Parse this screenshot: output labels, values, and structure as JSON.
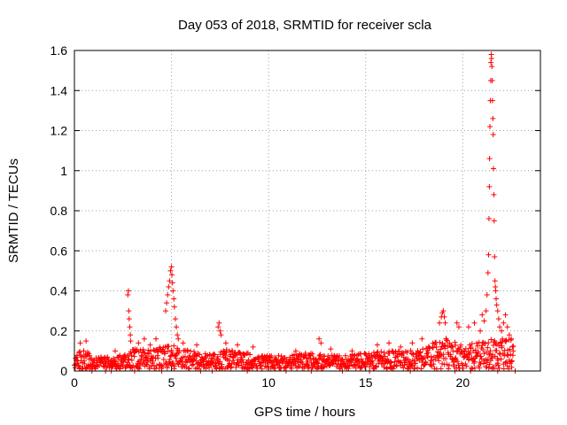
{
  "chart_data": {
    "type": "scatter",
    "title": "Day 053 of 2018, SRMTID for receiver scla",
    "xlabel": "GPS time / hours",
    "ylabel": "SRMTID / TECUs",
    "xlim": [
      0,
      24
    ],
    "ylim": [
      0,
      1.6
    ],
    "x_ticks": [
      0,
      5,
      10,
      15,
      20
    ],
    "x_tick_labels": [
      "0",
      "5",
      "10",
      "15",
      "20"
    ],
    "y_ticks": [
      0,
      0.2,
      0.4,
      0.6,
      0.8,
      1,
      1.2,
      1.4,
      1.6
    ],
    "y_tick_labels": [
      "0",
      "0.2",
      "0.4",
      "0.6",
      "0.8",
      "1",
      "1.2",
      "1.4",
      "1.6"
    ],
    "grid": true,
    "marker": "+",
    "series_color": "#ff0000",
    "baseline_envelope": [
      [
        0.0,
        0.08
      ],
      [
        0.5,
        0.1
      ],
      [
        1.0,
        0.06
      ],
      [
        2.0,
        0.06
      ],
      [
        3.0,
        0.1
      ],
      [
        4.0,
        0.1
      ],
      [
        5.0,
        0.12
      ],
      [
        6.0,
        0.09
      ],
      [
        7.0,
        0.08
      ],
      [
        8.0,
        0.1
      ],
      [
        9.0,
        0.08
      ],
      [
        10.0,
        0.07
      ],
      [
        11.0,
        0.07
      ],
      [
        12.0,
        0.08
      ],
      [
        13.0,
        0.07
      ],
      [
        14.0,
        0.07
      ],
      [
        15.0,
        0.08
      ],
      [
        16.0,
        0.09
      ],
      [
        17.0,
        0.09
      ],
      [
        18.0,
        0.11
      ],
      [
        19.0,
        0.16
      ],
      [
        20.0,
        0.12
      ],
      [
        21.0,
        0.14
      ],
      [
        22.0,
        0.16
      ],
      [
        22.6,
        0.15
      ]
    ],
    "points": [
      [
        2.75,
        0.38
      ],
      [
        2.78,
        0.4
      ],
      [
        2.8,
        0.3
      ],
      [
        2.82,
        0.26
      ],
      [
        2.85,
        0.22
      ],
      [
        2.88,
        0.18
      ],
      [
        2.9,
        0.15
      ],
      [
        4.7,
        0.3
      ],
      [
        4.75,
        0.34
      ],
      [
        4.8,
        0.38
      ],
      [
        4.85,
        0.42
      ],
      [
        4.9,
        0.45
      ],
      [
        4.95,
        0.5
      ],
      [
        5.0,
        0.52
      ],
      [
        5.02,
        0.48
      ],
      [
        5.05,
        0.44
      ],
      [
        5.08,
        0.4
      ],
      [
        5.12,
        0.36
      ],
      [
        5.15,
        0.32
      ],
      [
        5.2,
        0.26
      ],
      [
        5.25,
        0.22
      ],
      [
        5.3,
        0.18
      ],
      [
        5.35,
        0.16
      ],
      [
        7.4,
        0.22
      ],
      [
        7.45,
        0.24
      ],
      [
        7.5,
        0.2
      ],
      [
        7.55,
        0.18
      ],
      [
        12.6,
        0.16
      ],
      [
        12.7,
        0.14
      ],
      [
        18.8,
        0.24
      ],
      [
        18.9,
        0.27
      ],
      [
        18.95,
        0.29
      ],
      [
        19.0,
        0.3
      ],
      [
        19.05,
        0.27
      ],
      [
        19.1,
        0.24
      ],
      [
        19.7,
        0.24
      ],
      [
        19.8,
        0.22
      ],
      [
        20.3,
        0.22
      ],
      [
        20.6,
        0.24
      ],
      [
        20.9,
        0.2
      ],
      [
        21.0,
        0.28
      ],
      [
        21.1,
        0.25
      ],
      [
        21.2,
        0.3
      ],
      [
        21.25,
        0.38
      ],
      [
        21.3,
        0.49
      ],
      [
        21.33,
        0.58
      ],
      [
        21.35,
        0.76
      ],
      [
        21.37,
        0.92
      ],
      [
        21.38,
        1.06
      ],
      [
        21.4,
        1.22
      ],
      [
        21.42,
        1.35
      ],
      [
        21.44,
        1.45
      ],
      [
        21.45,
        1.54
      ],
      [
        21.47,
        1.58
      ],
      [
        21.48,
        1.56
      ],
      [
        21.5,
        1.52
      ],
      [
        21.52,
        1.45
      ],
      [
        21.53,
        1.35
      ],
      [
        21.55,
        1.26
      ],
      [
        21.57,
        1.18
      ],
      [
        21.58,
        1.01
      ],
      [
        21.6,
        0.88
      ],
      [
        21.62,
        0.75
      ],
      [
        21.64,
        0.57
      ],
      [
        21.66,
        0.45
      ],
      [
        21.68,
        0.42
      ],
      [
        21.7,
        0.4
      ],
      [
        21.72,
        0.36
      ],
      [
        21.75,
        0.33
      ],
      [
        21.8,
        0.3
      ],
      [
        21.85,
        0.26
      ],
      [
        21.9,
        0.22
      ],
      [
        22.0,
        0.2
      ],
      [
        22.1,
        0.24
      ],
      [
        22.2,
        0.28
      ],
      [
        22.3,
        0.22
      ],
      [
        22.4,
        0.18
      ],
      [
        22.5,
        0.16
      ],
      [
        22.6,
        0.1
      ],
      [
        0.3,
        0.14
      ],
      [
        0.6,
        0.15
      ],
      [
        2.1,
        0.1
      ],
      [
        3.3,
        0.14
      ],
      [
        3.6,
        0.16
      ],
      [
        3.9,
        0.13
      ],
      [
        4.2,
        0.16
      ],
      [
        5.6,
        0.14
      ],
      [
        6.3,
        0.13
      ],
      [
        7.8,
        0.14
      ],
      [
        8.4,
        0.13
      ],
      [
        9.2,
        0.12
      ],
      [
        11.4,
        0.1
      ],
      [
        13.2,
        0.11
      ],
      [
        14.3,
        0.1
      ],
      [
        15.6,
        0.13
      ],
      [
        16.2,
        0.14
      ],
      [
        16.8,
        0.12
      ],
      [
        17.4,
        0.14
      ],
      [
        17.9,
        0.16
      ],
      [
        1.6,
        0.0
      ],
      [
        1.9,
        0.0
      ],
      [
        3.1,
        0.0
      ],
      [
        4.5,
        0.0
      ],
      [
        6.5,
        0.0
      ],
      [
        7.1,
        0.0
      ],
      [
        8.9,
        0.0
      ],
      [
        10.9,
        0.0
      ],
      [
        12.2,
        0.0
      ],
      [
        13.8,
        0.0
      ],
      [
        15.2,
        0.0
      ],
      [
        17.3,
        0.0
      ],
      [
        19.6,
        0.0
      ],
      [
        20.4,
        0.0
      ],
      [
        21.8,
        0.0
      ],
      [
        22.7,
        0.0
      ],
      [
        0.9,
        0.0
      ]
    ]
  }
}
